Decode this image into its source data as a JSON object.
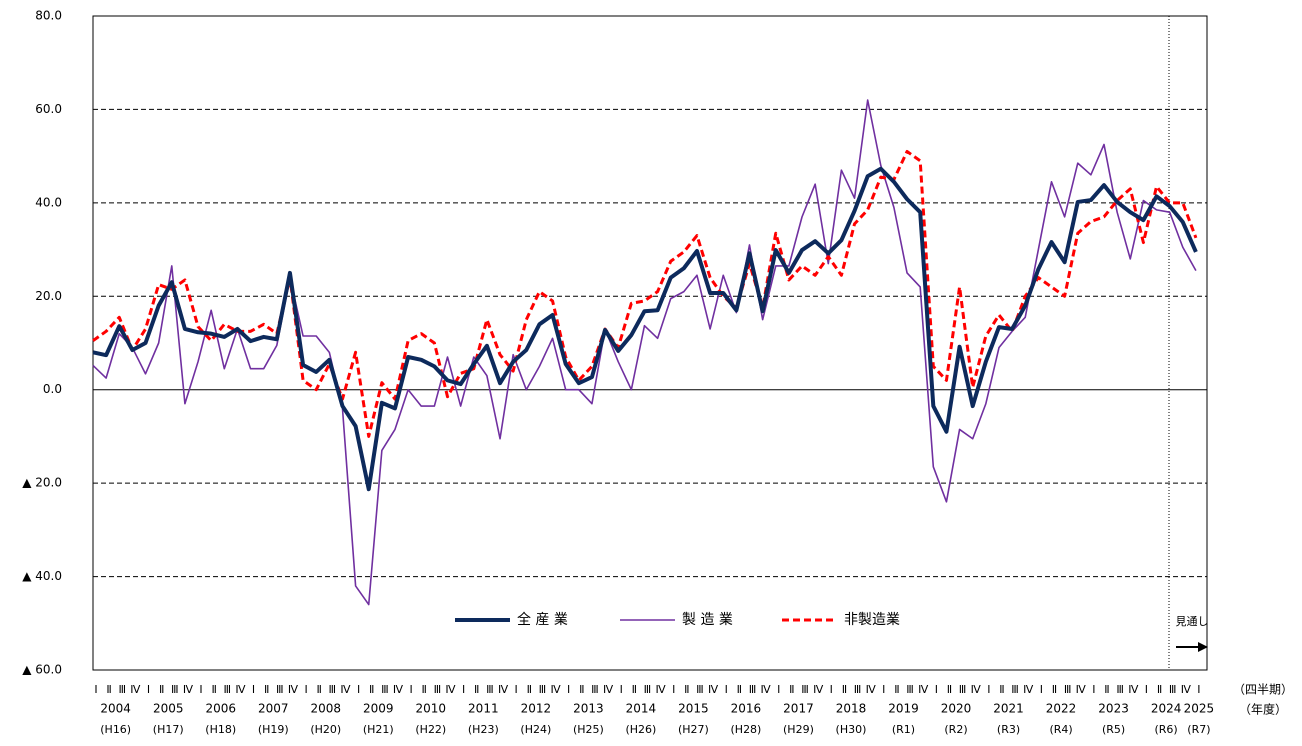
{
  "chart_data": {
    "type": "line",
    "categories": [
      "Ⅰ",
      "Ⅱ",
      "Ⅲ",
      "Ⅳ",
      "Ⅰ",
      "Ⅱ",
      "Ⅲ",
      "Ⅳ",
      "Ⅰ",
      "Ⅱ",
      "Ⅲ",
      "Ⅳ",
      "Ⅰ",
      "Ⅱ",
      "Ⅲ",
      "Ⅳ",
      "Ⅰ",
      "Ⅱ",
      "Ⅲ",
      "Ⅳ",
      "Ⅰ",
      "Ⅱ",
      "Ⅲ",
      "Ⅳ",
      "Ⅰ",
      "Ⅱ",
      "Ⅲ",
      "Ⅳ",
      "Ⅰ",
      "Ⅱ",
      "Ⅲ",
      "Ⅳ",
      "Ⅰ",
      "Ⅱ",
      "Ⅲ",
      "Ⅳ",
      "Ⅰ",
      "Ⅱ",
      "Ⅲ",
      "Ⅳ",
      "Ⅰ",
      "Ⅱ",
      "Ⅲ",
      "Ⅳ",
      "Ⅰ",
      "Ⅱ",
      "Ⅲ",
      "Ⅳ",
      "Ⅰ",
      "Ⅱ",
      "Ⅲ",
      "Ⅳ",
      "Ⅰ",
      "Ⅱ",
      "Ⅲ",
      "Ⅳ",
      "Ⅰ",
      "Ⅱ",
      "Ⅲ",
      "Ⅳ",
      "Ⅰ",
      "Ⅱ",
      "Ⅲ",
      "Ⅳ",
      "Ⅰ",
      "Ⅱ",
      "Ⅲ",
      "Ⅳ",
      "Ⅰ",
      "Ⅱ",
      "Ⅲ",
      "Ⅳ",
      "Ⅰ",
      "Ⅱ",
      "Ⅲ",
      "Ⅳ",
      "Ⅰ",
      "Ⅱ",
      "Ⅲ",
      "Ⅳ",
      "Ⅰ",
      "Ⅱ",
      "Ⅲ",
      "Ⅳ",
      "Ⅰ"
    ],
    "years": [
      "2004",
      "2005",
      "2006",
      "2007",
      "2008",
      "2009",
      "2010",
      "2011",
      "2012",
      "2013",
      "2014",
      "2015",
      "2016",
      "2017",
      "2018",
      "2019",
      "2020",
      "2021",
      "2022",
      "2023",
      "2024",
      "2025"
    ],
    "eras": [
      "(H16)",
      "(H17)",
      "(H18)",
      "(H19)",
      "(H20)",
      "(H21)",
      "(H22)",
      "(H23)",
      "(H24)",
      "(H25)",
      "(H26)",
      "(H27)",
      "(H28)",
      "(H29)",
      "(H30)",
      "(R1)",
      "(R2)",
      "(R3)",
      "(R4)",
      "(R5)",
      "(R6)",
      "(R7)"
    ],
    "quarter_axis_label": "（四半期）",
    "year_axis_label": "（年度）",
    "forecast_label": "見通し",
    "series": [
      {
        "name": "全 産 業",
        "color": "#0d2a5c",
        "width": 4,
        "dash": "none",
        "values": [
          8.0,
          7.4,
          13.6,
          8.5,
          10,
          18,
          23,
          13,
          12.3,
          12,
          11.3,
          13,
          10.4,
          11.3,
          10.8,
          25,
          5.3,
          3.8,
          6.4,
          -3.5,
          -7.8,
          -21.3,
          -2.8,
          -4,
          7,
          6.4,
          5,
          2,
          1.2,
          5.5,
          9.4,
          1.4,
          6,
          8.5,
          14,
          16,
          5.5,
          1.4,
          2.7,
          12.8,
          8.3,
          11.7,
          16.8,
          17,
          24,
          26,
          29.7,
          20.7,
          20.7,
          17,
          29.2,
          16.8,
          29.9,
          25,
          29.9,
          31.8,
          29.2,
          32,
          38.3,
          45.7,
          47.3,
          44.5,
          40.8,
          38,
          -3.5,
          -9,
          9.2,
          -3.5,
          6,
          13.4,
          13,
          18,
          25.8,
          31.6,
          27.3,
          40.2,
          40.6,
          43.8,
          40.2,
          38,
          36.3,
          41.4,
          39.3,
          35.9,
          29.5
        ]
      },
      {
        "name": "製 造 業",
        "color": "#7030a0",
        "width": 1.6,
        "dash": "none",
        "values": [
          5.2,
          2.5,
          12,
          9,
          3.4,
          10,
          26.5,
          -3,
          6,
          17,
          4.5,
          13,
          4.5,
          4.5,
          9.5,
          24,
          11.5,
          11.5,
          8,
          -4,
          -42,
          -46,
          -13,
          -8.5,
          0,
          -3.5,
          -3.5,
          7,
          -3.5,
          7,
          3,
          -10.5,
          7.5,
          0,
          5,
          11,
          0,
          0,
          -3,
          13,
          6,
          0,
          13.7,
          11,
          19.5,
          21,
          24.5,
          13,
          24.5,
          16.5,
          31,
          15,
          26.5,
          26.5,
          37,
          44,
          27,
          47,
          41,
          62,
          48,
          39,
          25,
          22,
          -16.5,
          -24,
          -8.5,
          -10.5,
          -3,
          9,
          12.5,
          15.5,
          30,
          44.5,
          37,
          48.5,
          46,
          52.5,
          38,
          28,
          40.5,
          38.5,
          38,
          30.5,
          25.5
        ]
      },
      {
        "name": "非製造業",
        "color": "#ff0000",
        "width": 3,
        "dash": "7 4",
        "values": [
          10.5,
          12.5,
          15.5,
          8.5,
          13,
          22.5,
          21.5,
          23.5,
          13.5,
          10.5,
          14,
          12.5,
          12.5,
          14,
          12,
          24,
          2,
          0,
          5.5,
          -2,
          8,
          -10,
          1.5,
          -2,
          10.5,
          12,
          10,
          -1.5,
          3.5,
          4.5,
          15,
          7.5,
          4,
          15,
          21,
          19,
          7,
          2,
          5,
          13,
          9,
          18.5,
          19,
          21,
          27.5,
          29.5,
          33,
          24,
          20,
          17.5,
          27,
          17.5,
          33.5,
          23.5,
          26.5,
          24.5,
          28.5,
          24.5,
          35.5,
          38.5,
          45.5,
          45,
          51,
          49,
          5,
          2,
          22,
          0.5,
          11.5,
          16,
          12.5,
          20,
          24,
          22,
          20,
          33.5,
          36,
          37,
          40.5,
          43,
          31.5,
          43.5,
          40,
          40,
          32.5
        ]
      }
    ],
    "ylim": [
      -60,
      80
    ],
    "yticks": [
      {
        "value": -60,
        "label": "▲ 60.0"
      },
      {
        "value": -40,
        "label": "▲ 40.0"
      },
      {
        "value": -20,
        "label": "▲ 20.0"
      },
      {
        "value": 0,
        "label": "0.0"
      },
      {
        "value": 20,
        "label": "20.0"
      },
      {
        "value": 40,
        "label": "40.0"
      },
      {
        "value": 60,
        "label": "60.0"
      },
      {
        "value": 80,
        "label": "80.0"
      }
    ],
    "grid": true
  }
}
